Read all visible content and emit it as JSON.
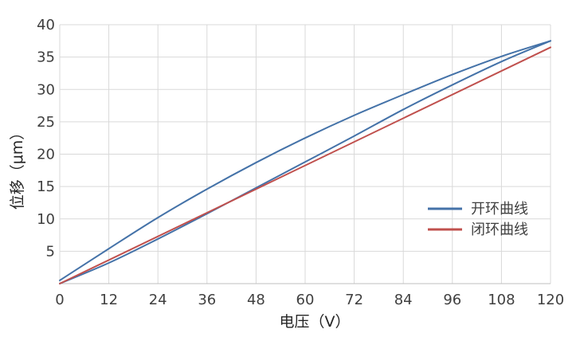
{
  "chart_data": {
    "type": "line",
    "title": "",
    "xlabel": "电压（V）",
    "ylabel": "位移（μm）",
    "xlim": [
      0,
      120
    ],
    "ylim": [
      0,
      40
    ],
    "xticks": [
      0,
      12,
      24,
      36,
      48,
      60,
      72,
      84,
      96,
      108,
      120
    ],
    "yticks": [
      5,
      10,
      15,
      20,
      25,
      30,
      35,
      40
    ],
    "grid": true,
    "legend_position": "right",
    "series": [
      {
        "name": "开环曲线",
        "color": "#4472a8",
        "segments": [
          {
            "label": "rising",
            "x": [
              0,
              12,
              24,
              36,
              48,
              60,
              72,
              84,
              96,
              108,
              120
            ],
            "y": [
              0.5,
              5.4,
              10.2,
              14.6,
              18.7,
              22.5,
              26.0,
              29.2,
              32.3,
              35.1,
              37.5
            ]
          },
          {
            "label": "falling",
            "x": [
              0,
              12,
              24,
              36,
              48,
              60,
              72,
              84,
              96,
              108,
              120
            ],
            "y": [
              0.0,
              3.2,
              6.9,
              10.8,
              14.8,
              18.8,
              22.8,
              26.9,
              30.7,
              34.3,
              37.5
            ]
          }
        ]
      },
      {
        "name": "闭环曲线",
        "color": "#c0504d",
        "segments": [
          {
            "label": "linear",
            "x": [
              0,
              120
            ],
            "y": [
              0.0,
              36.5
            ]
          }
        ]
      }
    ]
  }
}
